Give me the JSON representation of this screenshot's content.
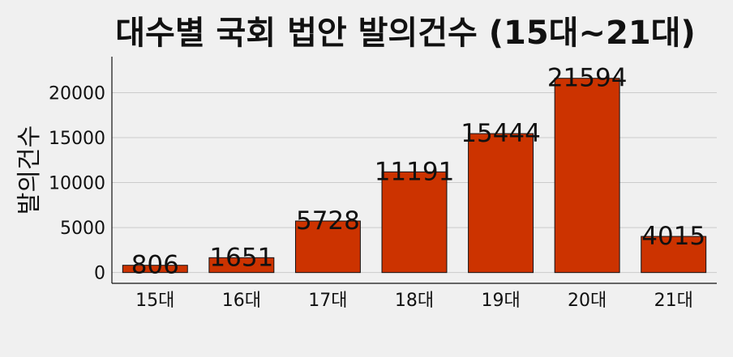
{
  "chart_data": {
    "type": "bar",
    "title": "대수별 국회 법안 발의건수 (15대~21대)",
    "xlabel": "",
    "ylabel": "발의건수",
    "categories": [
      "15대",
      "16대",
      "17대",
      "18대",
      "19대",
      "20대",
      "21대"
    ],
    "values": [
      806,
      1651,
      5728,
      11191,
      15444,
      21594,
      4015
    ],
    "data_labels": [
      "806",
      "1651",
      "5728",
      "11191",
      "15444",
      "21594",
      "4015"
    ],
    "yticks": [
      0,
      5000,
      10000,
      15000,
      20000
    ],
    "ylim": [
      -1200,
      24000
    ],
    "grid": true,
    "bar_color": "#cc3300",
    "background_color": "#f0f0f0"
  }
}
